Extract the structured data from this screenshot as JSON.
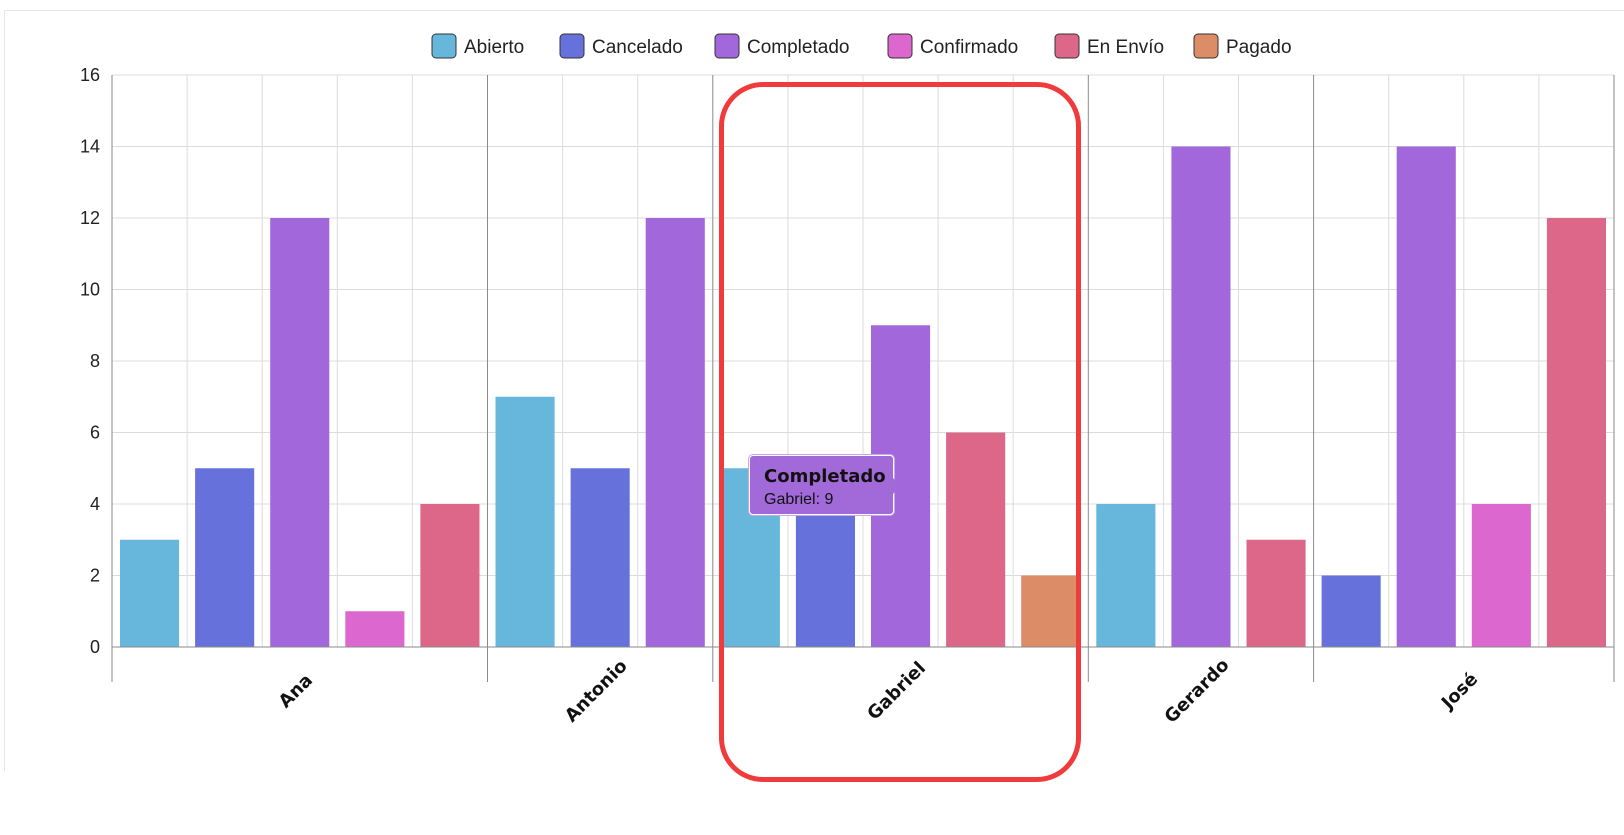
{
  "colors": {
    "Abierto": "#67b7dc",
    "Cancelado": "#6771dc",
    "Completado": "#a367dc",
    "Confirmado": "#dc67ce",
    "En Envío": "#dc6788",
    "Pagado": "#dc8c67",
    "highlight": "#ef3b3b"
  },
  "chart_data": {
    "type": "bar",
    "categories": [
      "Ana",
      "Antonio",
      "Gabriel",
      "Gerardo",
      "José"
    ],
    "series": [
      {
        "name": "Abierto",
        "values": [
          3,
          7,
          5,
          4,
          null
        ]
      },
      {
        "name": "Cancelado",
        "values": [
          5,
          5,
          4,
          null,
          2
        ]
      },
      {
        "name": "Completado",
        "values": [
          12,
          12,
          9,
          14,
          14
        ]
      },
      {
        "name": "Confirmado",
        "values": [
          1,
          null,
          null,
          null,
          4
        ]
      },
      {
        "name": "En Envío",
        "values": [
          4,
          null,
          6,
          3,
          12
        ]
      },
      {
        "name": "Pagado",
        "values": [
          null,
          null,
          2,
          null,
          null
        ]
      }
    ],
    "ylim": [
      0,
      16
    ],
    "yticks": [
      0,
      2,
      4,
      6,
      8,
      10,
      12,
      14,
      16
    ],
    "xlabel": "",
    "ylabel": "",
    "grid": true,
    "legend_position": "top-center",
    "highlighted_category": "Gabriel"
  },
  "tooltip": {
    "title": "Completado",
    "body": "Gabriel: 9"
  }
}
